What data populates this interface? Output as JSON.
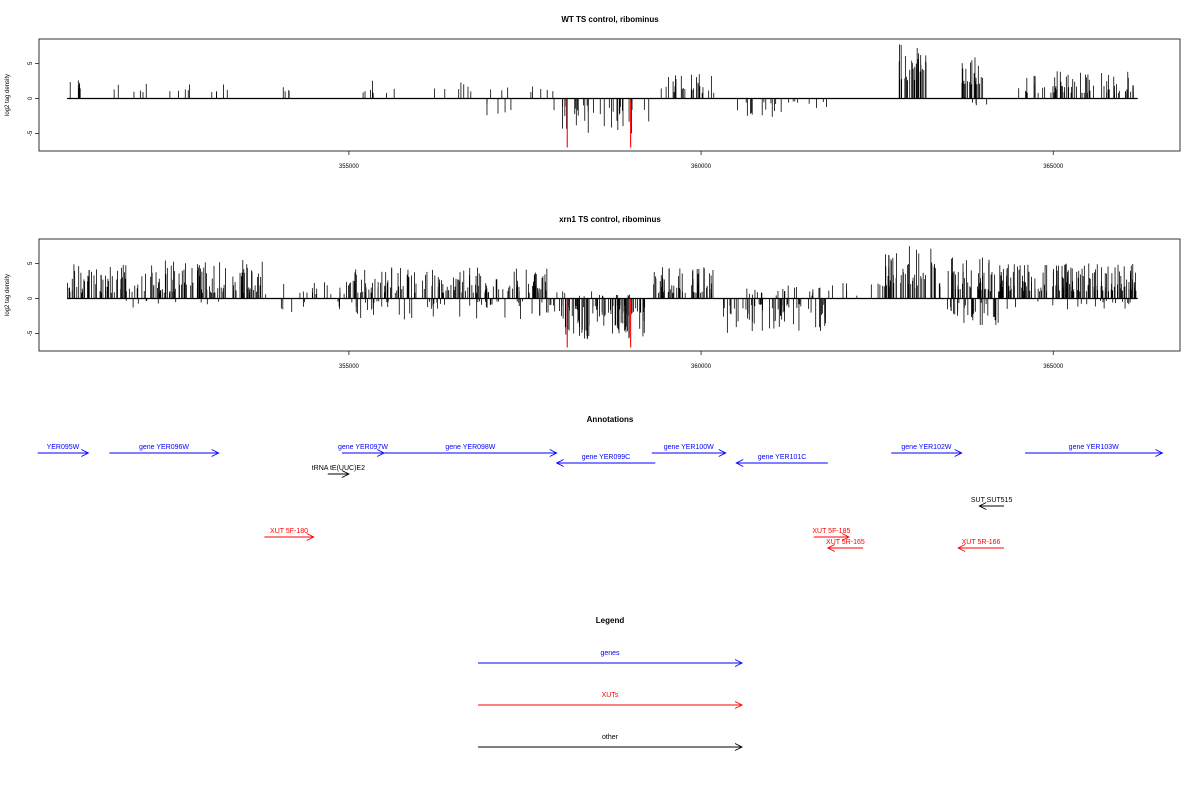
{
  "chart_data": [
    {
      "type": "bar",
      "title": "WT TS control, ribominus",
      "ylabel": "log2 tag density",
      "ylim": [
        -7.5,
        8.5
      ],
      "y_ticks": [
        -5,
        0,
        5
      ],
      "xlim": [
        350600,
        366800
      ],
      "x_ticks": [
        355000,
        360000,
        365000
      ],
      "bar_color": "#000000",
      "highlight_color": "#ff0000",
      "segments": [
        {
          "from": 351000,
          "to": 351250,
          "lo": 1.2,
          "hi": 2.6,
          "neg": false,
          "n": 6
        },
        {
          "from": 351600,
          "to": 352200,
          "lo": 0.8,
          "hi": 2.5,
          "neg": false,
          "n": 6
        },
        {
          "from": 352300,
          "to": 353300,
          "lo": 0.8,
          "hi": 2.3,
          "neg": false,
          "n": 10
        },
        {
          "from": 353800,
          "to": 354300,
          "lo": 1.0,
          "hi": 1.8,
          "neg": false,
          "n": 5
        },
        {
          "from": 355000,
          "to": 355800,
          "lo": 0.8,
          "hi": 2.7,
          "neg": false,
          "n": 8
        },
        {
          "from": 356200,
          "to": 357000,
          "lo": 0.8,
          "hi": 2.4,
          "neg": false,
          "n": 7
        },
        {
          "from": 357000,
          "to": 357900,
          "lo": 0.6,
          "hi": 2.0,
          "neg": false,
          "n": 8
        },
        {
          "from": 356900,
          "to": 357600,
          "lo": 0.5,
          "hi": 2.6,
          "neg": true,
          "n": 5
        },
        {
          "from": 357900,
          "to": 359300,
          "lo": 1.0,
          "hi": 5.0,
          "neg": true,
          "n": 34
        },
        {
          "from": 359400,
          "to": 360200,
          "lo": 0.8,
          "hi": 3.5,
          "neg": false,
          "n": 26
        },
        {
          "from": 360500,
          "to": 361200,
          "lo": 0.5,
          "hi": 2.8,
          "neg": true,
          "n": 14
        },
        {
          "from": 361200,
          "to": 361900,
          "lo": 0.4,
          "hi": 1.5,
          "neg": true,
          "n": 8
        },
        {
          "from": 362800,
          "to": 363200,
          "lo": 2.5,
          "hi": 7.8,
          "neg": false,
          "n": 32
        },
        {
          "from": 363700,
          "to": 364000,
          "lo": 2.0,
          "hi": 6.0,
          "neg": false,
          "n": 22
        },
        {
          "from": 363850,
          "to": 364100,
          "lo": 0.5,
          "hi": 1.2,
          "neg": true,
          "n": 4
        },
        {
          "from": 364500,
          "to": 366200,
          "lo": 0.8,
          "hi": 4.0,
          "neg": false,
          "n": 70
        }
      ],
      "highlights": [
        {
          "x": 358100,
          "y": -7.0
        },
        {
          "x": 359000,
          "y": -7.0
        }
      ]
    },
    {
      "type": "bar",
      "title": "xrn1 TS control, ribominus",
      "ylabel": "log2 tag density",
      "ylim": [
        -7.5,
        8.5
      ],
      "y_ticks": [
        -5,
        0,
        5
      ],
      "xlim": [
        350600,
        366800
      ],
      "x_ticks": [
        355000,
        360000,
        365000
      ],
      "bar_color": "#000000",
      "highlight_color": "#ff0000",
      "segments": [
        {
          "from": 351000,
          "to": 353800,
          "lo": 0.8,
          "hi": 5.5,
          "neg": false,
          "n": 170
        },
        {
          "from": 351800,
          "to": 353600,
          "lo": 0.3,
          "hi": 1.5,
          "neg": true,
          "n": 10
        },
        {
          "from": 353800,
          "to": 355000,
          "lo": 0.6,
          "hi": 2.5,
          "neg": false,
          "n": 18
        },
        {
          "from": 354000,
          "to": 354900,
          "lo": 0.4,
          "hi": 2.0,
          "neg": true,
          "n": 8
        },
        {
          "from": 355000,
          "to": 357900,
          "lo": 0.8,
          "hi": 4.6,
          "neg": false,
          "n": 150
        },
        {
          "from": 355000,
          "to": 357900,
          "lo": 0.4,
          "hi": 3.0,
          "neg": true,
          "n": 60
        },
        {
          "from": 357900,
          "to": 359200,
          "lo": 1.0,
          "hi": 6.5,
          "neg": true,
          "n": 90
        },
        {
          "from": 357900,
          "to": 359100,
          "lo": 0.3,
          "hi": 1.2,
          "neg": false,
          "n": 14
        },
        {
          "from": 359300,
          "to": 360200,
          "lo": 0.8,
          "hi": 4.5,
          "neg": false,
          "n": 60
        },
        {
          "from": 360300,
          "to": 361800,
          "lo": 0.8,
          "hi": 5.0,
          "neg": true,
          "n": 60
        },
        {
          "from": 360500,
          "to": 361800,
          "lo": 0.4,
          "hi": 2.0,
          "neg": false,
          "n": 22
        },
        {
          "from": 361800,
          "to": 362600,
          "lo": 0.4,
          "hi": 2.6,
          "neg": false,
          "n": 10
        },
        {
          "from": 362600,
          "to": 363400,
          "lo": 1.5,
          "hi": 7.5,
          "neg": false,
          "n": 50
        },
        {
          "from": 363500,
          "to": 364100,
          "lo": 1.2,
          "hi": 7.0,
          "neg": false,
          "n": 40
        },
        {
          "from": 363500,
          "to": 364400,
          "lo": 0.6,
          "hi": 3.8,
          "neg": true,
          "n": 30
        },
        {
          "from": 364100,
          "to": 366200,
          "lo": 1.0,
          "hi": 5.0,
          "neg": false,
          "n": 160
        },
        {
          "from": 364300,
          "to": 366100,
          "lo": 0.3,
          "hi": 1.8,
          "neg": true,
          "n": 20
        }
      ],
      "highlights": [
        {
          "x": 358100,
          "y": -7.0
        },
        {
          "x": 359000,
          "y": -7.0
        }
      ]
    }
  ],
  "annotations": {
    "title": "Annotations",
    "colors": {
      "gene": "#0000ff",
      "xut": "#ff0000",
      "other": "#000000"
    },
    "features": [
      {
        "label": "YER095W",
        "start": 350580,
        "end": 351300,
        "strand": "+",
        "type": "gene",
        "row": 0
      },
      {
        "label": "gene YER096W",
        "start": 351600,
        "end": 353150,
        "strand": "+",
        "type": "gene",
        "row": 0
      },
      {
        "label": "gene YER097W",
        "start": 354900,
        "end": 355500,
        "strand": "+",
        "type": "gene",
        "row": 0
      },
      {
        "label": "gene YER098W",
        "start": 355500,
        "end": 357950,
        "strand": "+",
        "type": "gene",
        "row": 0
      },
      {
        "label": "gene YER099C",
        "start": 357950,
        "end": 359350,
        "strand": "-",
        "type": "gene",
        "row": 1
      },
      {
        "label": "gene YER100W",
        "start": 359300,
        "end": 360350,
        "strand": "+",
        "type": "gene",
        "row": 0
      },
      {
        "label": "gene YER101C",
        "start": 360500,
        "end": 361800,
        "strand": "-",
        "type": "gene",
        "row": 1
      },
      {
        "label": "gene YER102W",
        "start": 362700,
        "end": 363700,
        "strand": "+",
        "type": "gene",
        "row": 0
      },
      {
        "label": "gene YER103W",
        "start": 364600,
        "end": 366550,
        "strand": "+",
        "type": "gene",
        "row": 0
      },
      {
        "label": "tRNA tE(UUC)E2",
        "start": 354700,
        "end": 355000,
        "strand": "+",
        "type": "other",
        "row": 2
      },
      {
        "label": "SUT SUT515",
        "start": 363950,
        "end": 364300,
        "strand": "-",
        "type": "other",
        "row": 3
      },
      {
        "label": "XUT 5F-180",
        "start": 353800,
        "end": 354500,
        "strand": "+",
        "type": "xut",
        "row": 4
      },
      {
        "label": "XUT 5F-185",
        "start": 361600,
        "end": 362100,
        "strand": "+",
        "type": "xut",
        "row": 4
      },
      {
        "label": "XUT 5R-165",
        "start": 361800,
        "end": 362300,
        "strand": "-",
        "type": "xut",
        "row": 5
      },
      {
        "label": "XUT 5R-166",
        "start": 363650,
        "end": 364300,
        "strand": "-",
        "type": "xut",
        "row": 5
      }
    ]
  },
  "legend": {
    "title": "Legend",
    "items": [
      {
        "label": "genes",
        "color": "#0000ff"
      },
      {
        "label": "XUTs",
        "color": "#ff0000"
      },
      {
        "label": "other",
        "color": "#000000"
      }
    ]
  }
}
